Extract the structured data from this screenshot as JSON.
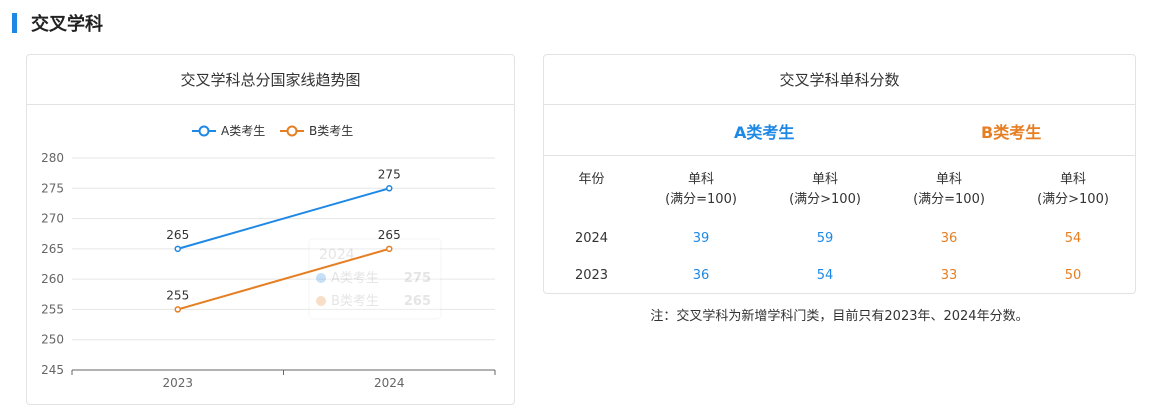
{
  "section": {
    "title": "交叉学科"
  },
  "left_card": {
    "title": "交叉学科总分国家线趋势图"
  },
  "right_card": {
    "title": "交叉学科单科分数",
    "group_a": "A类考生",
    "group_b": "B类考生",
    "headers": {
      "year": "年份",
      "a1": [
        "单科",
        "(满分=100)"
      ],
      "a2": [
        "单科",
        "(满分>100)"
      ],
      "b1": [
        "单科",
        "(满分=100)"
      ],
      "b2": [
        "单科",
        "(满分>100)"
      ]
    },
    "rows": [
      {
        "year": "2024",
        "a1": "39",
        "a2": "59",
        "b1": "36",
        "b2": "54"
      },
      {
        "year": "2023",
        "a1": "36",
        "a2": "54",
        "b1": "33",
        "b2": "50"
      }
    ]
  },
  "note": "注：交叉学科为新增学科门类，目前只有2023年、2024年分数。",
  "colors": {
    "a": "#1e88e5",
    "b": "#e67e22"
  },
  "chart_data": {
    "type": "line",
    "categories": [
      "2023",
      "2024"
    ],
    "series": [
      {
        "name": "A类考生",
        "values": [
          265,
          275
        ],
        "color": "#1e88e5"
      },
      {
        "name": "B类考生",
        "values": [
          255,
          265
        ],
        "color": "#e67e22"
      }
    ],
    "ylim": [
      245,
      280
    ],
    "yticks": [
      245,
      250,
      255,
      260,
      265,
      270,
      275,
      280
    ],
    "grid": true,
    "legend": "top-center",
    "tooltip": {
      "title": "2024",
      "items": [
        {
          "name": "A类考生",
          "value": "275"
        },
        {
          "name": "B类考生",
          "value": "265"
        }
      ]
    }
  }
}
